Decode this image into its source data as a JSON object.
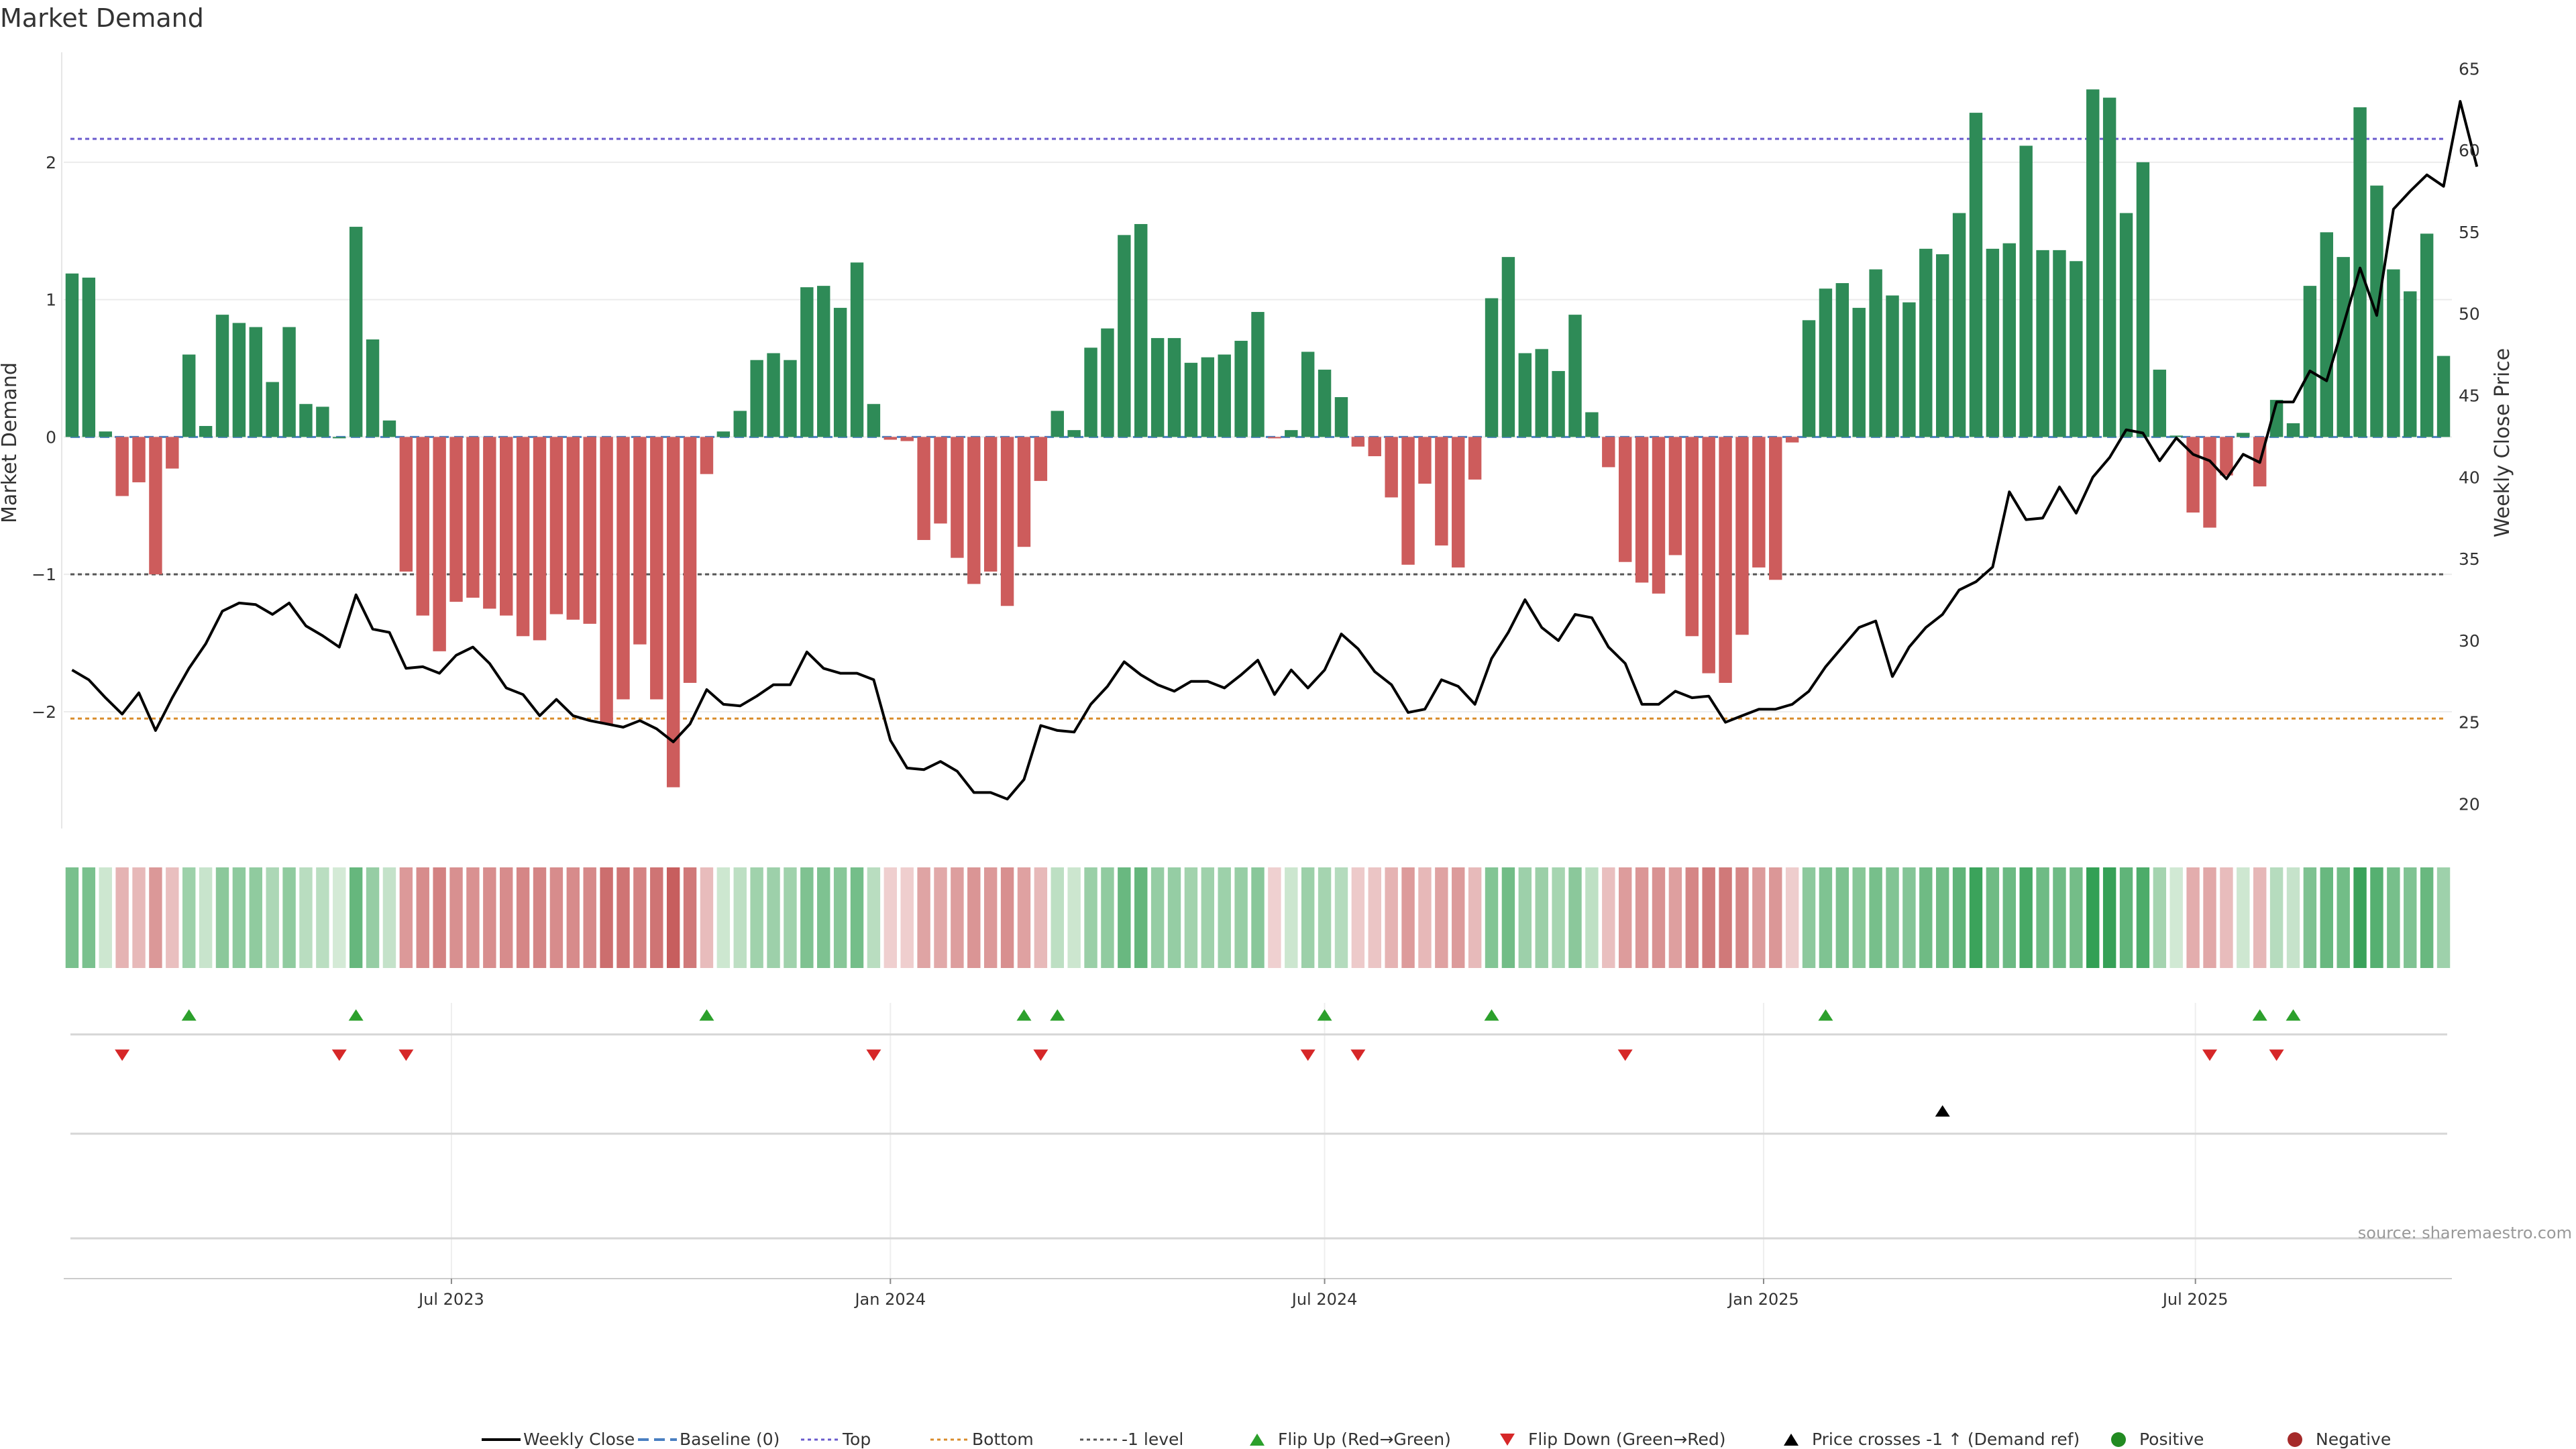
{
  "title": "Market Demand",
  "source_note": "source: sharemaestro.com",
  "colors": {
    "positive": "#2e8b57",
    "negative": "#cd5c5c",
    "price_line": "#000000",
    "top_line": "#6a5acd",
    "bottom_line": "#d98c2b",
    "minus1_line": "#555555",
    "flip_up": "#2ca02c",
    "flip_down": "#d62728",
    "cross_up": "#000000",
    "positive_dot": "#228b22",
    "negative_dot": "#a52a2a"
  },
  "chart_data": {
    "type": "bar",
    "title": "Market Demand",
    "x_start": "2023-01-23",
    "x_step_days": 7,
    "x_ticks": [
      "Jul 2023",
      "Jan 2024",
      "Jul 2024",
      "Jan 2025",
      "Jul 2025"
    ],
    "x_tick_dates": [
      "2023-07-01",
      "2024-01-01",
      "2024-07-01",
      "2025-01-01",
      "2025-07-01"
    ],
    "left_axis": {
      "label": "Market Demand",
      "ylim": [
        -2.85,
        2.8
      ],
      "ticks": [
        -2,
        -1,
        0,
        1,
        2
      ],
      "tick_labels": [
        "−2",
        "−1",
        "0",
        "1",
        "2"
      ]
    },
    "right_axis": {
      "label": "Weekly Close Price",
      "ylim": [
        18.5,
        66.0
      ],
      "ticks": [
        20,
        25,
        30,
        35,
        40,
        45,
        50,
        55,
        60,
        65
      ]
    },
    "levels": {
      "top": 2.17,
      "bottom": -2.05,
      "minus_one": -1.0,
      "baseline": 0
    },
    "demand": [
      1.19,
      1.16,
      0.04,
      -0.43,
      -0.33,
      -1.0,
      -0.23,
      0.6,
      0.08,
      0.89,
      0.83,
      0.8,
      0.4,
      0.8,
      0.24,
      0.22,
      0.0,
      1.53,
      0.71,
      0.12,
      -0.98,
      -1.3,
      -1.56,
      -1.2,
      -1.17,
      -1.25,
      -1.3,
      -1.45,
      -1.48,
      -1.29,
      -1.33,
      -1.36,
      -2.09,
      -1.91,
      -1.51,
      -1.91,
      -2.55,
      -1.79,
      -0.27,
      0.04,
      0.19,
      0.56,
      0.61,
      0.56,
      1.09,
      1.1,
      0.94,
      1.27,
      0.24,
      -0.02,
      -0.03,
      -0.75,
      -0.63,
      -0.88,
      -1.07,
      -0.98,
      -1.23,
      -0.8,
      -0.32,
      0.19,
      0.05,
      0.65,
      0.79,
      1.47,
      1.55,
      0.72,
      0.72,
      0.54,
      0.58,
      0.6,
      0.7,
      0.91,
      -0.01,
      0.05,
      0.62,
      0.49,
      0.29,
      -0.07,
      -0.14,
      -0.44,
      -0.93,
      -0.34,
      -0.79,
      -0.95,
      -0.31,
      1.01,
      1.31,
      0.61,
      0.64,
      0.48,
      0.89,
      0.18,
      -0.22,
      -0.91,
      -1.06,
      -1.14,
      -0.86,
      -1.45,
      -1.72,
      -1.79,
      -1.44,
      -0.95,
      -1.04,
      -0.04,
      0.85,
      1.08,
      1.12,
      0.94,
      1.22,
      1.03,
      0.98,
      1.37,
      1.33,
      1.63,
      2.36,
      1.37,
      1.41,
      2.12,
      1.36,
      1.36,
      1.28,
      2.53,
      2.47,
      1.63,
      2.0,
      0.49,
      0.01,
      -0.55,
      -0.66,
      -0.28,
      0.03,
      -0.36,
      0.27,
      0.1,
      1.1,
      1.49,
      1.31,
      2.4,
      1.83,
      1.22,
      1.06,
      1.48,
      0.59
    ],
    "price": [
      28.2,
      27.6,
      26.5,
      25.5,
      26.8,
      24.5,
      26.5,
      28.3,
      29.8,
      31.8,
      32.3,
      32.2,
      31.6,
      32.3,
      30.9,
      30.3,
      29.6,
      32.8,
      30.7,
      30.5,
      28.3,
      28.4,
      28.0,
      29.1,
      29.6,
      28.6,
      27.1,
      26.7,
      25.4,
      26.4,
      25.4,
      25.1,
      24.9,
      24.7,
      25.1,
      24.6,
      23.8,
      24.9,
      27.0,
      26.1,
      26.0,
      26.6,
      27.3,
      27.3,
      29.3,
      28.3,
      28.0,
      28.0,
      27.6,
      23.9,
      22.2,
      22.1,
      22.6,
      22.0,
      20.7,
      20.7,
      20.3,
      21.5,
      24.8,
      24.5,
      24.4,
      26.1,
      27.2,
      28.7,
      27.9,
      27.3,
      26.9,
      27.5,
      27.5,
      27.1,
      27.9,
      28.8,
      26.7,
      28.2,
      27.1,
      28.2,
      30.4,
      29.5,
      28.1,
      27.3,
      25.6,
      25.8,
      27.6,
      27.2,
      26.1,
      28.9,
      30.5,
      32.5,
      30.8,
      30.0,
      31.6,
      31.4,
      29.6,
      28.6,
      26.1,
      26.1,
      26.9,
      26.5,
      26.6,
      25.0,
      25.4,
      25.8,
      25.8,
      26.1,
      26.9,
      28.4,
      29.6,
      30.8,
      31.2,
      27.8,
      29.6,
      30.8,
      31.6,
      33.1,
      33.6,
      34.5,
      39.1,
      37.4,
      37.5,
      39.4,
      37.8,
      40.0,
      41.2,
      42.9,
      42.7,
      41.0,
      42.4,
      41.4,
      41.0,
      39.9,
      41.4,
      40.9,
      44.6,
      44.6,
      46.5,
      45.9,
      49.3,
      52.8,
      49.9,
      56.4,
      57.5,
      58.5,
      57.8,
      63.0,
      59.0
    ],
    "flip_up_weeks": [
      7,
      17,
      38,
      57,
      59,
      75,
      85,
      105,
      131,
      133
    ],
    "flip_down_weeks": [
      3,
      16,
      20,
      48,
      58,
      74,
      77,
      93,
      128,
      132
    ],
    "price_cross_weeks": [
      112
    ],
    "legend": [
      {
        "label": "Weekly Close",
        "kind": "line"
      },
      {
        "label": "Baseline (0)",
        "kind": "dash"
      },
      {
        "label": "Top",
        "kind": "dot-top"
      },
      {
        "label": "Bottom",
        "kind": "dot-bottom"
      },
      {
        "label": "-1 level",
        "kind": "dot-minus1"
      },
      {
        "label": "Flip Up (Red→Green)",
        "kind": "tri-up"
      },
      {
        "label": "Flip Down (Green→Red)",
        "kind": "tri-down"
      },
      {
        "label": "Price crosses -1 ↑ (Demand ref)",
        "kind": "tri-black"
      },
      {
        "label": "Positive",
        "kind": "dot-pos"
      },
      {
        "label": "Negative",
        "kind": "dot-neg"
      }
    ]
  }
}
